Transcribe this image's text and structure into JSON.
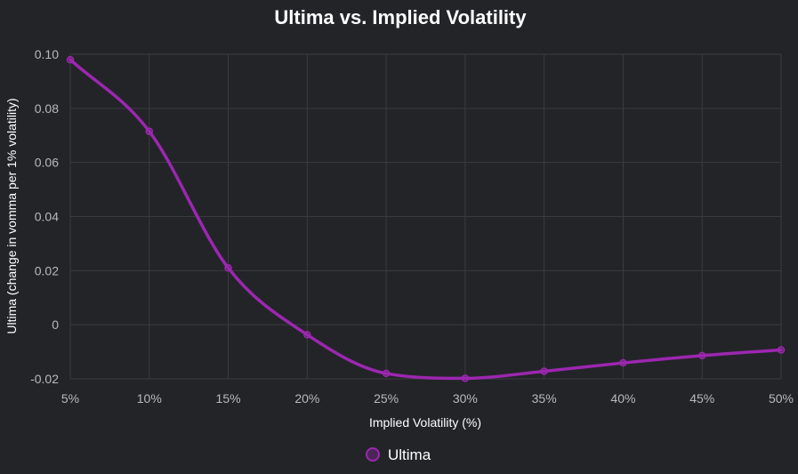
{
  "chart_data": {
    "type": "line",
    "title": "Ultima vs. Implied Volatility",
    "xlabel": "Implied Volatility (%)",
    "ylabel": "Ultima (change in vomma per 1% volatility)",
    "x": [
      "5%",
      "10%",
      "15%",
      "20%",
      "25%",
      "30%",
      "35%",
      "40%",
      "45%",
      "50%"
    ],
    "ylim": [
      -0.02,
      0.1
    ],
    "yticks": [
      -0.02,
      0,
      0.02,
      0.04,
      0.06,
      0.08,
      0.1
    ],
    "ytick_labels": [
      "-0.02",
      "0",
      "0.02",
      "0.04",
      "0.06",
      "0.08",
      "0.10"
    ],
    "grid": true,
    "legend_position": "bottom-center",
    "series": [
      {
        "name": "Ultima",
        "color": "#9c27b0",
        "values": [
          0.098,
          0.0715,
          0.021,
          -0.0037,
          -0.018,
          -0.0198,
          -0.0172,
          -0.0141,
          -0.0114,
          -0.0093
        ]
      }
    ]
  }
}
